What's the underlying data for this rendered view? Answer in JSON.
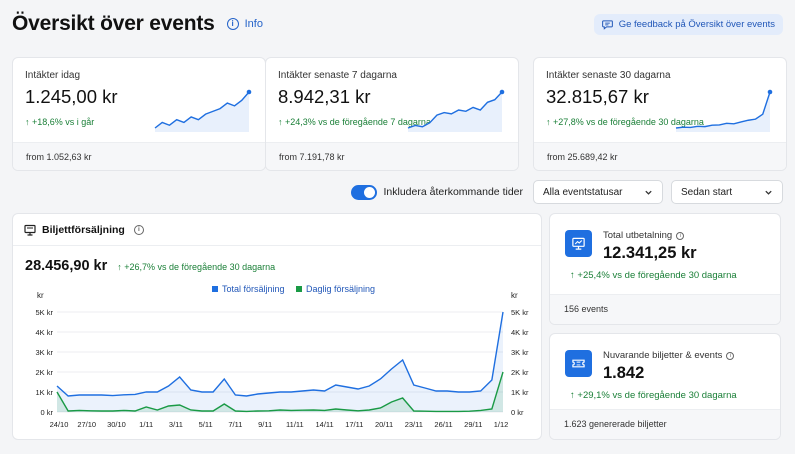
{
  "header": {
    "title": "Översikt över events",
    "info_label": "Info",
    "feedback_label": "Ge feedback på Översikt över events"
  },
  "stats": [
    {
      "label": "Intäkter idag",
      "value": "1.245,00 kr",
      "change": "+18,6% vs i går",
      "footer": "from 1.052,63 kr",
      "spark": [
        2,
        4,
        3,
        5,
        4,
        6,
        5,
        7,
        8,
        9,
        11,
        10,
        12,
        15
      ]
    },
    {
      "label": "Intäkter senaste 7 dagarna",
      "value": "8.942,31 kr",
      "change": "+24,3% vs de föregående 7 dagarna",
      "footer": "from 7.191,78 kr",
      "spark": [
        2,
        3,
        2.5,
        4,
        7,
        8,
        7.5,
        9,
        8.5,
        10,
        9,
        12,
        13,
        16
      ]
    },
    {
      "label": "Intäkter senaste 30 dagarna",
      "value": "32.815,67 kr",
      "change": "+27,8% vs de föregående 30 dagarna",
      "footer": "from 25.689,42 kr",
      "spark": [
        1,
        1.3,
        1.2,
        1.6,
        1.5,
        2,
        2.1,
        2.7,
        2.5,
        3.2,
        3.8,
        4.2,
        6,
        14
      ]
    }
  ],
  "filters": {
    "toggle_label": "Inkludera återkommande tider",
    "toggle_on": true,
    "status_select": "Alla eventstatusar",
    "period_select": "Sedan start"
  },
  "ticket_chart": {
    "title": "Biljettförsäljning",
    "total": "28.456,90 kr",
    "change": "+26,7% vs de föregående 30 dagarna"
  },
  "chart_data": {
    "type": "area",
    "ylabel": "kr",
    "y2label": "kr",
    "ylim": [
      0,
      5000
    ],
    "y_ticks": [
      "0 kr",
      "1K kr",
      "2K kr",
      "3K kr",
      "4K kr",
      "5K kr"
    ],
    "x_ticks": [
      "24/10",
      "27/10",
      "30/10",
      "1/11",
      "3/11",
      "5/11",
      "7/11",
      "9/11",
      "11/11",
      "14/11",
      "17/11",
      "20/11",
      "23/11",
      "26/11",
      "29/11",
      "1/12"
    ],
    "legend_position": "top",
    "series": [
      {
        "name": "Total försäljning",
        "color": "#1f6fe0",
        "values": [
          1300,
          800,
          850,
          850,
          850,
          820,
          860,
          880,
          1000,
          1000,
          1300,
          1750,
          1100,
          1000,
          1000,
          1650,
          850,
          800,
          900,
          950,
          1000,
          1000,
          1050,
          1100,
          1050,
          1350,
          1250,
          1150,
          1300,
          1650,
          2150,
          2600,
          1350,
          1200,
          1050,
          1050,
          1000,
          1000,
          1050,
          1600,
          5000
        ]
      },
      {
        "name": "Daglig försäljning",
        "color": "#1a9a45",
        "values": [
          1000,
          50,
          80,
          60,
          50,
          50,
          80,
          50,
          250,
          100,
          300,
          350,
          100,
          50,
          50,
          400,
          50,
          30,
          50,
          60,
          100,
          80,
          90,
          100,
          80,
          150,
          100,
          60,
          100,
          200,
          500,
          700,
          50,
          40,
          30,
          30,
          30,
          40,
          80,
          150,
          2000
        ]
      }
    ]
  },
  "side_cards": [
    {
      "label": "Total utbetalning",
      "value": "12.341,25 kr",
      "change": "+25,4%  vs de föregående 30 dagarna",
      "footer": "156 events"
    },
    {
      "label": "Nuvarande biljetter & events",
      "value": "1.842",
      "change": "+29,1%  vs de föregående 30 dagarna",
      "footer": "1.623 genererade biljetter"
    }
  ],
  "colors": {
    "accent": "#1f6fe0",
    "positive": "#1a7f37",
    "daily": "#1a9a45"
  }
}
